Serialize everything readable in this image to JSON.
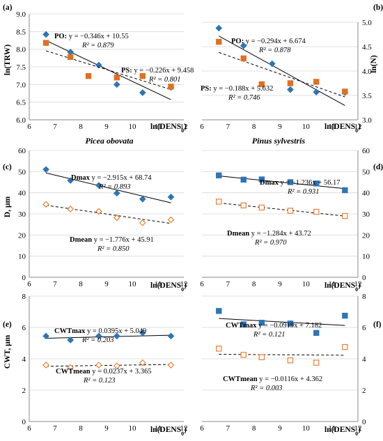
{
  "colors": {
    "po_marker": "#2E75B6",
    "ps_marker": "#E07020",
    "mean_marker_edge": "#ED7D31",
    "axis": "#000000",
    "grid": "#d9d9d9"
  },
  "species": {
    "left": "Picea obovata",
    "right": "Pinus sylvestris"
  },
  "chart_data": [
    {
      "id": "a",
      "letter": "(a)",
      "type": "scatter",
      "xlabel": "ln(DENS0)",
      "ylabel": "ln(TRW)",
      "xlim": [
        6,
        12
      ],
      "ylim": [
        6.0,
        9.0
      ],
      "xticks": [
        "6",
        "7",
        "8",
        "9",
        "10",
        "11",
        "12"
      ],
      "yticks": [
        "6.0",
        "6.5",
        "7.0",
        "7.5",
        "8.0",
        "8.5",
        "9.0"
      ],
      "grid": true,
      "series": [
        {
          "name": "PO",
          "marker": "diamond",
          "color": "#2E75B6",
          "fill": true,
          "points": [
            [
              6.65,
              8.42
            ],
            [
              7.6,
              7.92
            ],
            [
              8.7,
              7.55
            ],
            [
              9.4,
              7.0
            ],
            [
              10.4,
              6.77
            ],
            [
              11.5,
              6.92
            ]
          ],
          "fit": {
            "slope": -0.346,
            "intercept": 10.55,
            "dashed": false
          },
          "equation": "y = −0.346x + 10.55",
          "r2": "R² = 0.879"
        },
        {
          "name": "PS",
          "marker": "square",
          "color": "#E07020",
          "fill": true,
          "points": [
            [
              6.65,
              8.18
            ],
            [
              7.6,
              7.78
            ],
            [
              8.3,
              7.24
            ],
            [
              9.4,
              7.2
            ],
            [
              10.4,
              7.24
            ],
            [
              11.5,
              6.94
            ]
          ],
          "fit": {
            "slope": -0.226,
            "intercept": 9.458,
            "dashed": true
          },
          "equation": "y = −0.226x + 9.458",
          "r2": "R² = 0.801"
        }
      ]
    },
    {
      "id": "b",
      "letter": "(b)",
      "type": "scatter",
      "xlabel": "ln(DENS0)",
      "ylabel": "ln(N)",
      "xlim": [
        6,
        12
      ],
      "ylim": [
        3.0,
        5.0
      ],
      "xticks": [
        "6",
        "7",
        "8",
        "9",
        "10",
        "11",
        "12"
      ],
      "yticks": [
        "3.0",
        "3.5",
        "4.0",
        "4.5",
        "5.0"
      ],
      "grid": true,
      "series": [
        {
          "name": "PO",
          "marker": "diamond",
          "color": "#2E75B6",
          "fill": true,
          "points": [
            [
              6.65,
              4.88
            ],
            [
              7.6,
              4.52
            ],
            [
              8.7,
              4.15
            ],
            [
              9.4,
              3.62
            ],
            [
              10.4,
              3.57
            ],
            [
              11.5,
              3.56
            ]
          ],
          "fit": {
            "slope": -0.294,
            "intercept": 6.674,
            "dashed": false
          },
          "equation": "y = −0.294x + 6.674",
          "r2": "R² = 0.878"
        },
        {
          "name": "PS",
          "marker": "square",
          "color": "#E07020",
          "fill": true,
          "points": [
            [
              6.65,
              4.6
            ],
            [
              7.6,
              4.26
            ],
            [
              8.3,
              3.73
            ],
            [
              9.4,
              3.75
            ],
            [
              10.4,
              3.78
            ],
            [
              11.5,
              3.58
            ]
          ],
          "fit": {
            "slope": -0.188,
            "intercept": 5.632,
            "dashed": true
          },
          "equation": "y = −0.188x + 5.632",
          "r2": "R² = 0.746"
        }
      ]
    },
    {
      "id": "c",
      "letter": "(c)",
      "type": "scatter",
      "xlabel": "ln(DENS0)",
      "ylabel": "D, μm",
      "xlim": [
        6,
        12
      ],
      "ylim": [
        0,
        60
      ],
      "xticks": [
        "6",
        "7",
        "8",
        "9",
        "10",
        "11",
        "12"
      ],
      "yticks": [
        "0",
        "10",
        "20",
        "30",
        "40",
        "50",
        "60"
      ],
      "grid": true,
      "series": [
        {
          "name": "Dmax",
          "marker": "diamond",
          "color": "#2E75B6",
          "fill": true,
          "points": [
            [
              6.65,
              51
            ],
            [
              7.6,
              45.8
            ],
            [
              8.7,
              43.5
            ],
            [
              9.4,
              39.8
            ],
            [
              10.4,
              37.0
            ],
            [
              11.5,
              38.0
            ]
          ],
          "fit": {
            "slope": -2.915,
            "intercept": 68.74,
            "dashed": false
          },
          "equation": "y = −2.915x + 68.74",
          "r2": "R² = 0.893"
        },
        {
          "name": "Dmean",
          "marker": "diamond",
          "color": "#ED7D31",
          "fill": false,
          "points": [
            [
              6.65,
              34.5
            ],
            [
              7.6,
              32.3
            ],
            [
              8.7,
              31.2
            ],
            [
              9.4,
              28.2
            ],
            [
              10.4,
              25.8
            ],
            [
              11.5,
              27.2
            ]
          ],
          "fit": {
            "slope": -1.776,
            "intercept": 45.91,
            "dashed": true
          },
          "equation": "y = −1.776x + 45.91",
          "r2": "R² = 0.850"
        }
      ]
    },
    {
      "id": "d",
      "letter": "(d)",
      "type": "scatter",
      "xlabel": "ln(DENS0)",
      "ylabel": "",
      "xlim": [
        6,
        12
      ],
      "ylim": [
        0,
        60
      ],
      "xticks": [
        "6",
        "7",
        "8",
        "9",
        "10",
        "11",
        "12"
      ],
      "yticks": [
        "0",
        "10",
        "20",
        "30",
        "40",
        "50",
        "60"
      ],
      "grid": true,
      "series": [
        {
          "name": "Dmax",
          "marker": "square",
          "color": "#2E75B6",
          "fill": true,
          "points": [
            [
              6.65,
              48.2
            ],
            [
              7.6,
              46.2
            ],
            [
              8.3,
              46.3
            ],
            [
              9.4,
              45.0
            ],
            [
              10.4,
              44.4
            ],
            [
              11.5,
              41.2
            ]
          ],
          "fit": {
            "slope": -1.236,
            "intercept": 56.17,
            "dashed": false
          },
          "equation": "y = −1.236x + 56.17",
          "r2": "R² = 0.931"
        },
        {
          "name": "Dmean",
          "marker": "square",
          "color": "#ED7D31",
          "fill": false,
          "points": [
            [
              6.65,
              35.8
            ],
            [
              7.6,
              34.0
            ],
            [
              8.3,
              33.0
            ],
            [
              9.4,
              31.5
            ],
            [
              10.4,
              31.0
            ],
            [
              11.5,
              29.0
            ]
          ],
          "fit": {
            "slope": -1.284,
            "intercept": 43.72,
            "dashed": true
          },
          "equation": "y = −1.284x + 43.72",
          "r2": "R² = 0.970"
        }
      ]
    },
    {
      "id": "e",
      "letter": "(e)",
      "type": "scatter",
      "xlabel": "ln(DENS0)",
      "ylabel": "CWT, μm",
      "xlim": [
        6,
        12
      ],
      "ylim": [
        0,
        8
      ],
      "xticks": [
        "6",
        "7",
        "8",
        "9",
        "10",
        "11",
        "12"
      ],
      "yticks": [
        "0",
        "2",
        "4",
        "6",
        "8"
      ],
      "grid": true,
      "series": [
        {
          "name": "CWTmax",
          "marker": "diamond",
          "color": "#2E75B6",
          "fill": true,
          "points": [
            [
              6.65,
              5.45
            ],
            [
              7.6,
              5.2
            ],
            [
              8.7,
              5.45
            ],
            [
              9.4,
              5.45
            ],
            [
              10.4,
              5.65
            ],
            [
              11.5,
              5.45
            ]
          ],
          "fit": {
            "slope": 0.0395,
            "intercept": 5.049,
            "dashed": false
          },
          "equation": "y = 0.0395x + 5.049",
          "r2": "R² = 0.203"
        },
        {
          "name": "CWTmean",
          "marker": "diamond",
          "color": "#ED7D31",
          "fill": false,
          "points": [
            [
              6.65,
              3.6
            ],
            [
              7.6,
              3.45
            ],
            [
              8.7,
              3.6
            ],
            [
              9.4,
              3.55
            ],
            [
              10.4,
              3.75
            ],
            [
              11.5,
              3.6
            ]
          ],
          "fit": {
            "slope": 0.0237,
            "intercept": 3.365,
            "dashed": true
          },
          "equation": "y = 0.0237x + 3.365",
          "r2": "R² = 0.123"
        }
      ]
    },
    {
      "id": "f",
      "letter": "(f)",
      "type": "scatter",
      "xlabel": "ln(DENS0)",
      "ylabel": "",
      "xlim": [
        6,
        12
      ],
      "ylim": [
        0,
        8
      ],
      "xticks": [
        "6",
        "7",
        "8",
        "9",
        "10",
        "11",
        "12"
      ],
      "yticks": [
        "0",
        "2",
        "4",
        "6",
        "8"
      ],
      "grid": true,
      "series": [
        {
          "name": "CWTmax",
          "marker": "square",
          "color": "#2E75B6",
          "fill": true,
          "points": [
            [
              6.65,
              7.05
            ],
            [
              7.6,
              6.2
            ],
            [
              8.3,
              6.3
            ],
            [
              9.4,
              6.25
            ],
            [
              10.4,
              5.65
            ],
            [
              11.5,
              6.75
            ]
          ],
          "fit": {
            "slope": -0.0919,
            "intercept": 7.182,
            "dashed": false
          },
          "equation": "y = −0.0919x + 7.182",
          "r2": "R² = 0.121"
        },
        {
          "name": "CWTmean",
          "marker": "square",
          "color": "#ED7D31",
          "fill": false,
          "points": [
            [
              6.65,
              4.65
            ],
            [
              7.6,
              4.25
            ],
            [
              8.3,
              4.1
            ],
            [
              9.4,
              3.9
            ],
            [
              10.4,
              3.75
            ],
            [
              11.5,
              4.75
            ]
          ],
          "fit": {
            "slope": -0.0116,
            "intercept": 4.362,
            "dashed": true
          },
          "equation": "y = −0.0116x + 4.362",
          "r2": "R² = 0.003"
        }
      ]
    }
  ]
}
